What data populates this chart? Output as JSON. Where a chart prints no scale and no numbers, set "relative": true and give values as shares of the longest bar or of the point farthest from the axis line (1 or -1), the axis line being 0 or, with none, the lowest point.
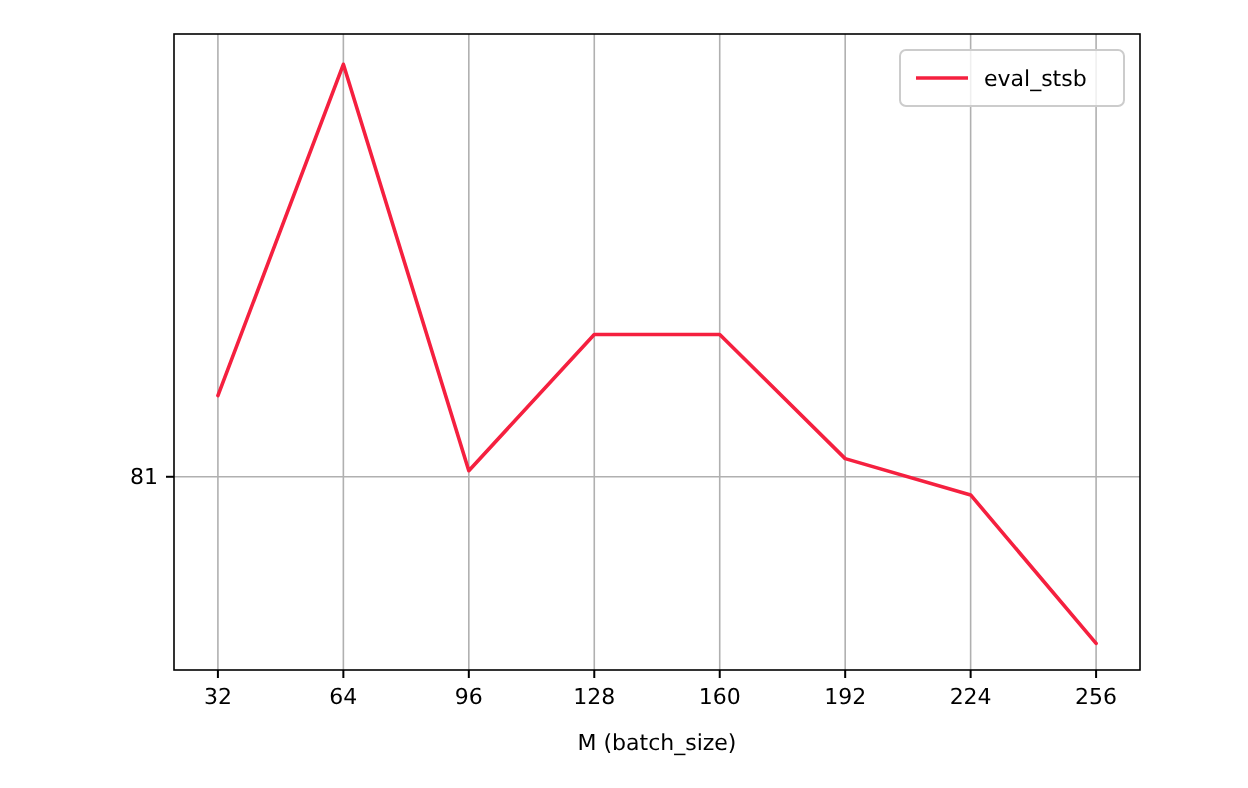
{
  "chart_data": {
    "type": "line",
    "xlabel": "M (batch_size)",
    "x": [
      32,
      64,
      96,
      128,
      160,
      192,
      224,
      256
    ],
    "series": [
      {
        "name": "eval_stsb",
        "color": "#f5203f",
        "values": [
          0.453,
          1,
          0.329,
          0.554,
          0.554,
          0.349,
          0.289,
          0.044
        ]
      }
    ],
    "relative": true,
    "xlim": [
      20.8,
      267.2
    ],
    "xticks": [
      32,
      64,
      96,
      128,
      160,
      192,
      224,
      256
    ],
    "grid": true,
    "legend": "top right",
    "ref_lines": [
      {
        "axis": "y",
        "value": 0.319
      }
    ],
    "annotations": [
      "81"
    ]
  }
}
